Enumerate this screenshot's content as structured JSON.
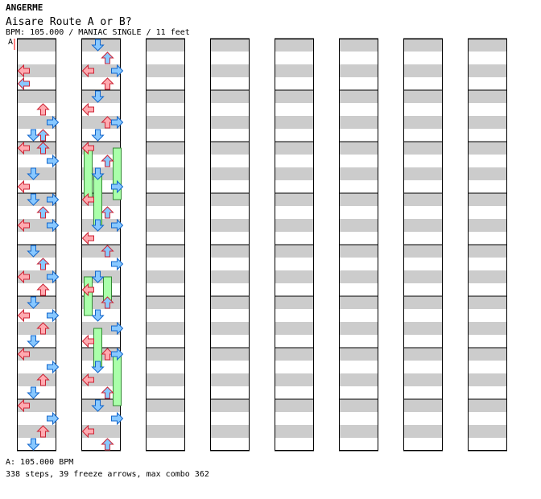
{
  "header": {
    "artist": "ANGERME",
    "song_title": "Aisare Route A or B?",
    "info_line": "BPM: 105.000 / MANIAC SINGLE / 11 feet",
    "bpm_marker": "A"
  },
  "footer": {
    "bpm_legend": "A: 105.000 BPM",
    "stats": "338 steps, 39 freeze arrows, max combo 362"
  },
  "chart": {
    "columns": 8,
    "measures_per_column": 8,
    "lanes": [
      "left",
      "down",
      "up",
      "right"
    ],
    "lane_colors": {
      "left": "#ffaab0",
      "down": "#88c8ff",
      "up": "#ffaab0",
      "right": "#88c8ff",
      "eighth": "#88c8ff",
      "sixteenth": "#ffccff",
      "twentyfourth": "#ffff44",
      "freeze": "#aaffaa",
      "row_shade": "#cccccc"
    },
    "icon_names": {
      "left": "arrow-left-icon",
      "down": "arrow-down-icon",
      "up": "arrow-up-icon",
      "right": "arrow-right-icon",
      "freeze": "freeze-arrow-icon"
    },
    "notes": [
      [
        2,
        0,
        "4"
      ],
      [
        3,
        0,
        "8"
      ],
      [
        5,
        2,
        "4"
      ],
      [
        6,
        3,
        "4"
      ],
      [
        7,
        1,
        "4"
      ],
      [
        7,
        2,
        "8"
      ],
      [
        8,
        0,
        "4"
      ],
      [
        8,
        2,
        "8"
      ],
      [
        9,
        3,
        "4"
      ],
      [
        10,
        1,
        "8"
      ],
      [
        11,
        0,
        "4"
      ],
      [
        12,
        1,
        "8"
      ],
      [
        12,
        3,
        "4"
      ],
      [
        13,
        2,
        "8"
      ],
      [
        14,
        0,
        "4"
      ],
      [
        14,
        3,
        "8"
      ],
      [
        16,
        1,
        "4"
      ],
      [
        17,
        2,
        "8"
      ],
      [
        18,
        0,
        "4"
      ],
      [
        18,
        3,
        "8"
      ],
      [
        19,
        2,
        "4"
      ],
      [
        20,
        1,
        "8"
      ],
      [
        21,
        0,
        "4"
      ],
      [
        21,
        3,
        "8"
      ],
      [
        22,
        2,
        "4"
      ],
      [
        23,
        1,
        "8"
      ],
      [
        24,
        0,
        "4"
      ],
      [
        25,
        3,
        "8"
      ],
      [
        26,
        2,
        "4"
      ],
      [
        27,
        1,
        "8"
      ],
      [
        28,
        0,
        "4"
      ],
      [
        29,
        3,
        "8"
      ],
      [
        30,
        2,
        "4"
      ],
      [
        31,
        1,
        "8"
      ],
      [
        32,
        1,
        "4"
      ],
      [
        33,
        2,
        "8"
      ],
      [
        34,
        0,
        "4"
      ],
      [
        34,
        3,
        "8"
      ],
      [
        35,
        2,
        "4"
      ],
      [
        36,
        1,
        "8"
      ],
      [
        37,
        0,
        "4"
      ],
      [
        38,
        2,
        "4"
      ],
      [
        38,
        3,
        "8"
      ],
      [
        39,
        1,
        "4"
      ],
      [
        40,
        0,
        "4"
      ],
      [
        41,
        2,
        "8"
      ],
      [
        42,
        1,
        "4"
      ],
      [
        43,
        3,
        "8"
      ],
      [
        44,
        0,
        "4"
      ],
      [
        45,
        2,
        "8"
      ],
      [
        46,
        1,
        "4"
      ],
      [
        46,
        3,
        "8"
      ],
      [
        47,
        0,
        "4"
      ],
      [
        48,
        2,
        "8"
      ],
      [
        49,
        3,
        "4"
      ],
      [
        50,
        1,
        "8"
      ],
      [
        51,
        0,
        "4"
      ],
      [
        52,
        2,
        "8"
      ],
      [
        53,
        1,
        "4"
      ],
      [
        54,
        3,
        "8"
      ],
      [
        55,
        0,
        "4"
      ],
      [
        56,
        2,
        "4"
      ],
      [
        56,
        3,
        "8"
      ],
      [
        57,
        1,
        "4"
      ],
      [
        58,
        0,
        "4"
      ],
      [
        59,
        2,
        "8"
      ],
      [
        60,
        1,
        "4"
      ],
      [
        61,
        3,
        "8"
      ],
      [
        62,
        0,
        "4"
      ],
      [
        63,
        2,
        "8"
      ]
    ],
    "freezes": [
      [
        40,
        0,
        44
      ],
      [
        40,
        3,
        44
      ],
      [
        42,
        1,
        46
      ],
      [
        50,
        0,
        53
      ],
      [
        50,
        2,
        52
      ],
      [
        54,
        1,
        57
      ],
      [
        56,
        3,
        60
      ]
    ]
  }
}
